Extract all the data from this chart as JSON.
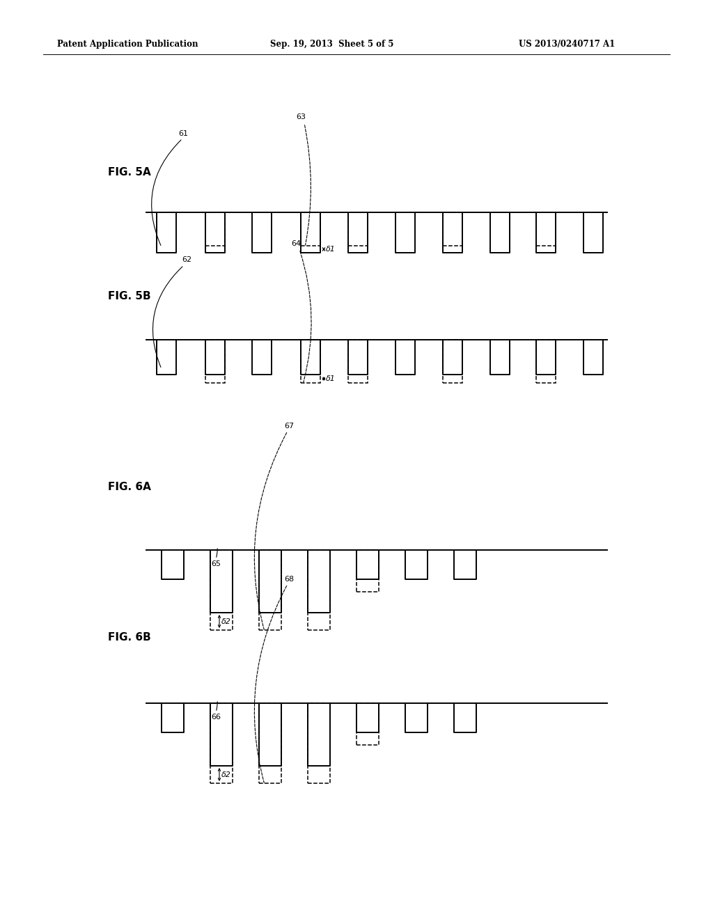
{
  "bg_color": "#ffffff",
  "text_color": "#000000",
  "header_left": "Patent Application Publication",
  "header_center": "Sep. 19, 2013  Sheet 5 of 5",
  "header_right": "US 2013/0240717 A1",
  "fig_labels": [
    "FIG. 5A",
    "FIG. 5B",
    "FIG. 6A",
    "FIG. 6B"
  ],
  "delta1": "δ1",
  "delta2": "δ2",
  "lw": 1.4,
  "dlw": 1.1
}
